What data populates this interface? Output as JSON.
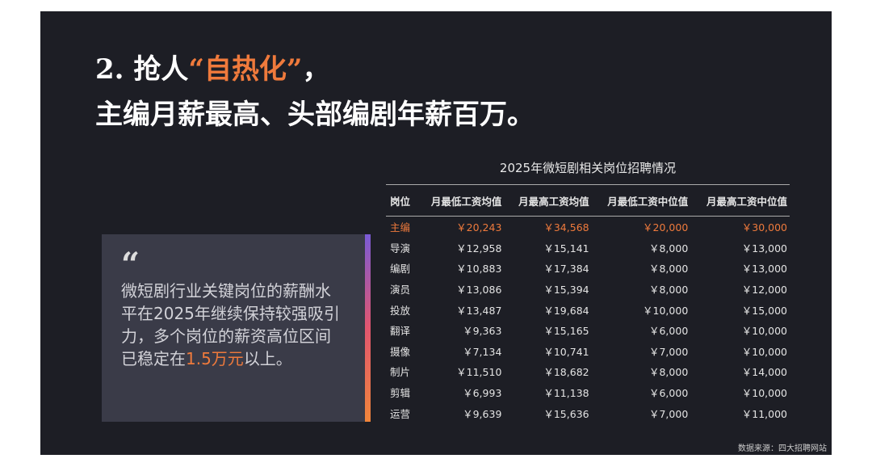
{
  "title": {
    "line1_prefix": "2. 抢人",
    "line1_highlight": "“自热化”",
    "line1_suffix": "，",
    "line2": "主编月薪最高、头部编剧年薪百万。"
  },
  "quote": {
    "mark": "“",
    "text_before": "微短剧行业关键岗位的薪酬水平在2025年继续保持较强吸引力，多个岗位的薪资高位区间已稳定在",
    "highlight": "1.5万元",
    "text_after": "以上。"
  },
  "table": {
    "title": "2025年微短剧相关岗位招聘情况",
    "headers": [
      "岗位",
      "月最低工资均值",
      "月最高工资均值",
      "月最低工资中位值",
      "月最高工资中位值"
    ],
    "rows": [
      [
        "主编",
        "￥20,243",
        "￥34,568",
        "￥20,000",
        "￥30,000"
      ],
      [
        "导演",
        "￥12,958",
        "￥15,141",
        "￥8,000",
        "￥13,000"
      ],
      [
        "编剧",
        "￥10,883",
        "￥17,384",
        "￥8,000",
        "￥13,000"
      ],
      [
        "演员",
        "￥13,086",
        "￥15,394",
        "￥8,000",
        "￥12,000"
      ],
      [
        "投放",
        "￥13,487",
        "￥19,684",
        "￥10,000",
        "￥15,000"
      ],
      [
        "翻译",
        "￥9,363",
        "￥15,165",
        "￥6,000",
        "￥10,000"
      ],
      [
        "摄像",
        "￥7,134",
        "￥10,741",
        "￥7,000",
        "￥10,000"
      ],
      [
        "制片",
        "￥11,510",
        "￥18,682",
        "￥8,000",
        "￥14,000"
      ],
      [
        "剪辑",
        "￥6,993",
        "￥11,138",
        "￥6,000",
        "￥10,000"
      ],
      [
        "运营",
        "￥9,639",
        "￥15,636",
        "￥7,000",
        "￥11,000"
      ]
    ]
  },
  "source": "数据来源：四大招聘网站"
}
